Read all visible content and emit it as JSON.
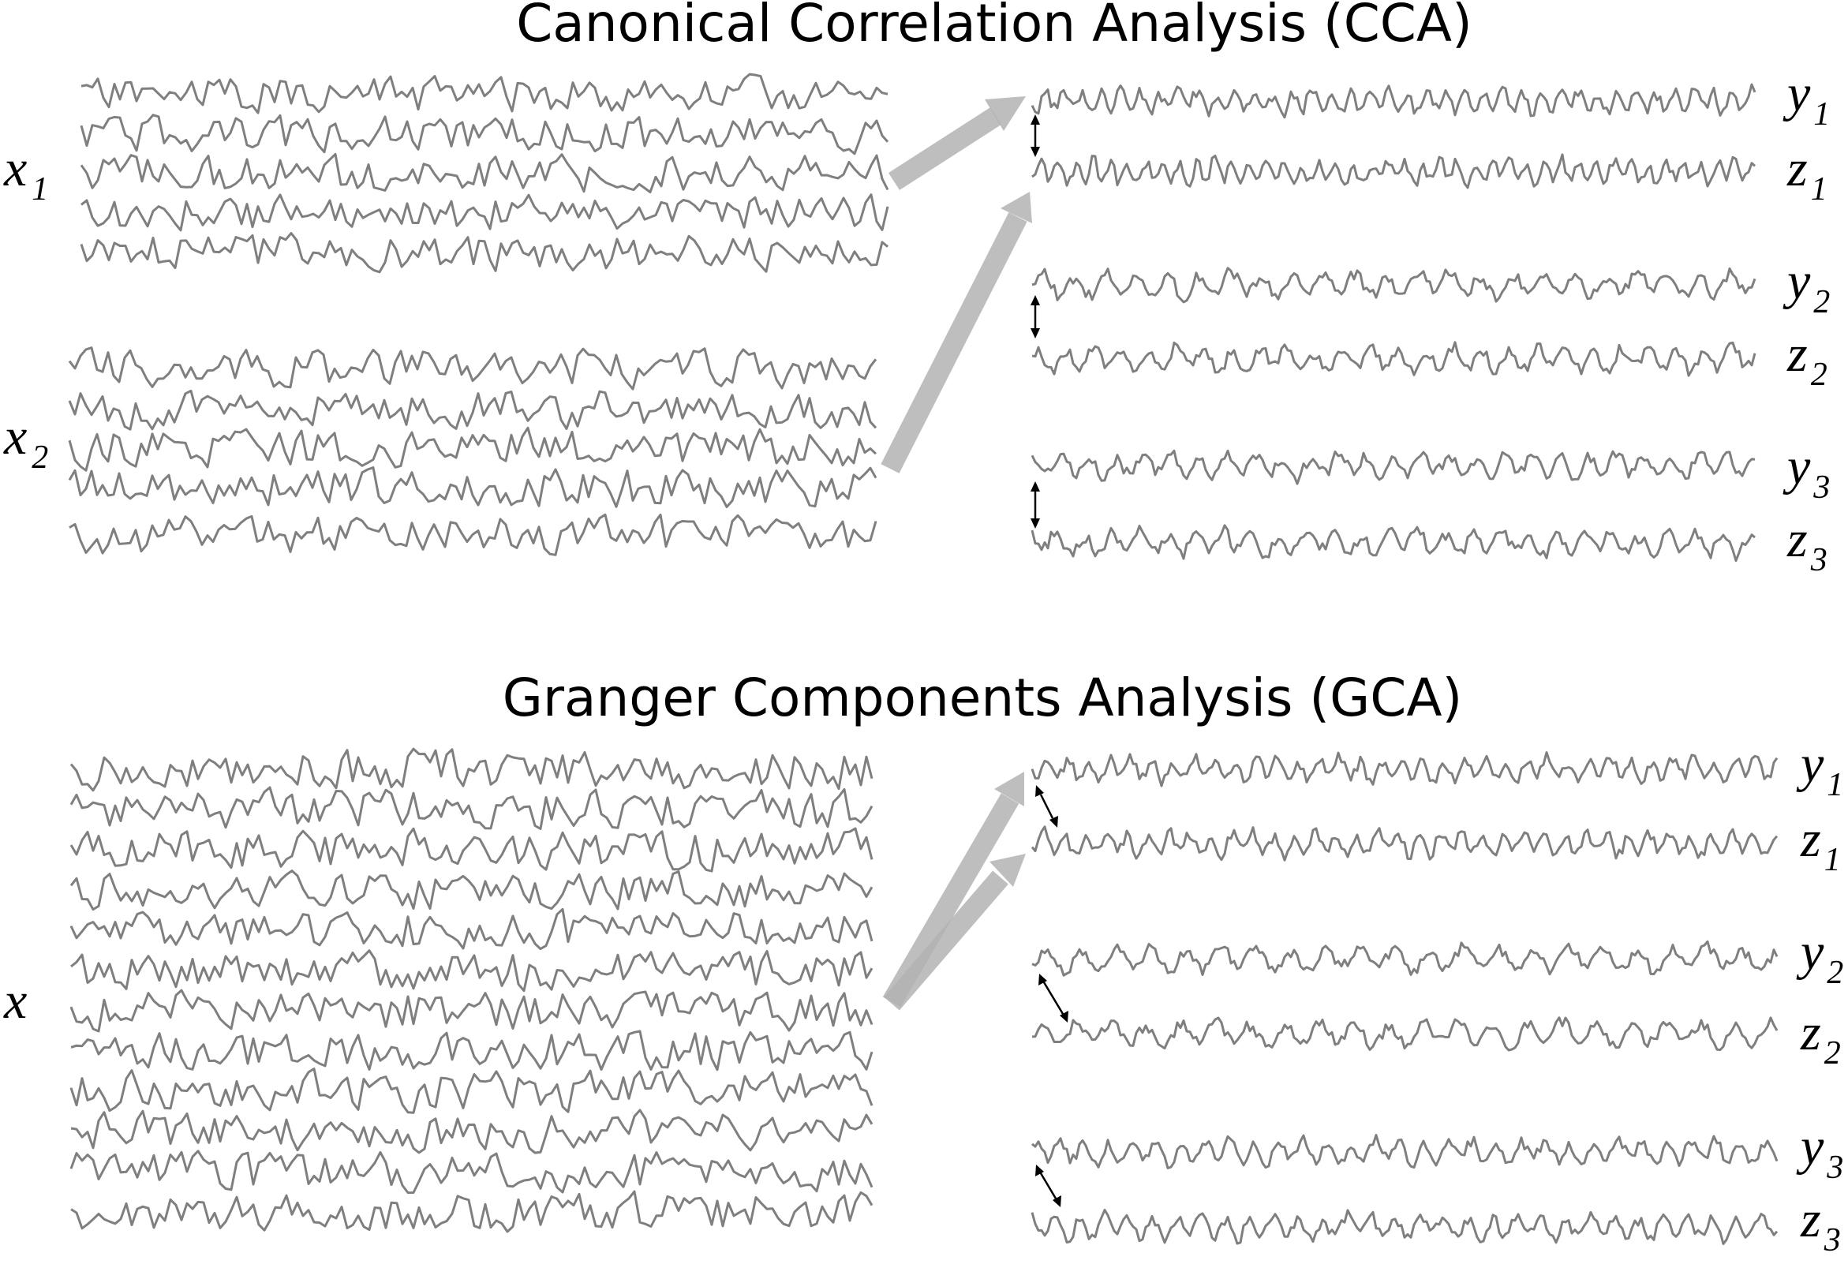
{
  "panels": [
    {
      "id": "cca",
      "title": "Canonical Correlation Analysis (CCA)",
      "inputs": [
        {
          "var": "x",
          "sub": "1"
        },
        {
          "var": "x",
          "sub": "2"
        }
      ],
      "outputs": [
        {
          "var": "y",
          "sub": "1"
        },
        {
          "var": "z",
          "sub": "1"
        },
        {
          "var": "y",
          "sub": "2"
        },
        {
          "var": "z",
          "sub": "2"
        },
        {
          "var": "y",
          "sub": "3"
        },
        {
          "var": "z",
          "sub": "3"
        }
      ]
    },
    {
      "id": "gca",
      "title": "Granger Components Analysis (GCA)",
      "inputs": [
        {
          "var": "x",
          "sub": ""
        }
      ],
      "outputs": [
        {
          "var": "y",
          "sub": "1"
        },
        {
          "var": "z",
          "sub": "1"
        },
        {
          "var": "y",
          "sub": "2"
        },
        {
          "var": "z",
          "sub": "2"
        },
        {
          "var": "y",
          "sub": "3"
        },
        {
          "var": "z",
          "sub": "3"
        }
      ]
    }
  ],
  "colors": {
    "trace": "#7f7f7f",
    "arrow": "#b3b3b3",
    "text": "#000000"
  }
}
